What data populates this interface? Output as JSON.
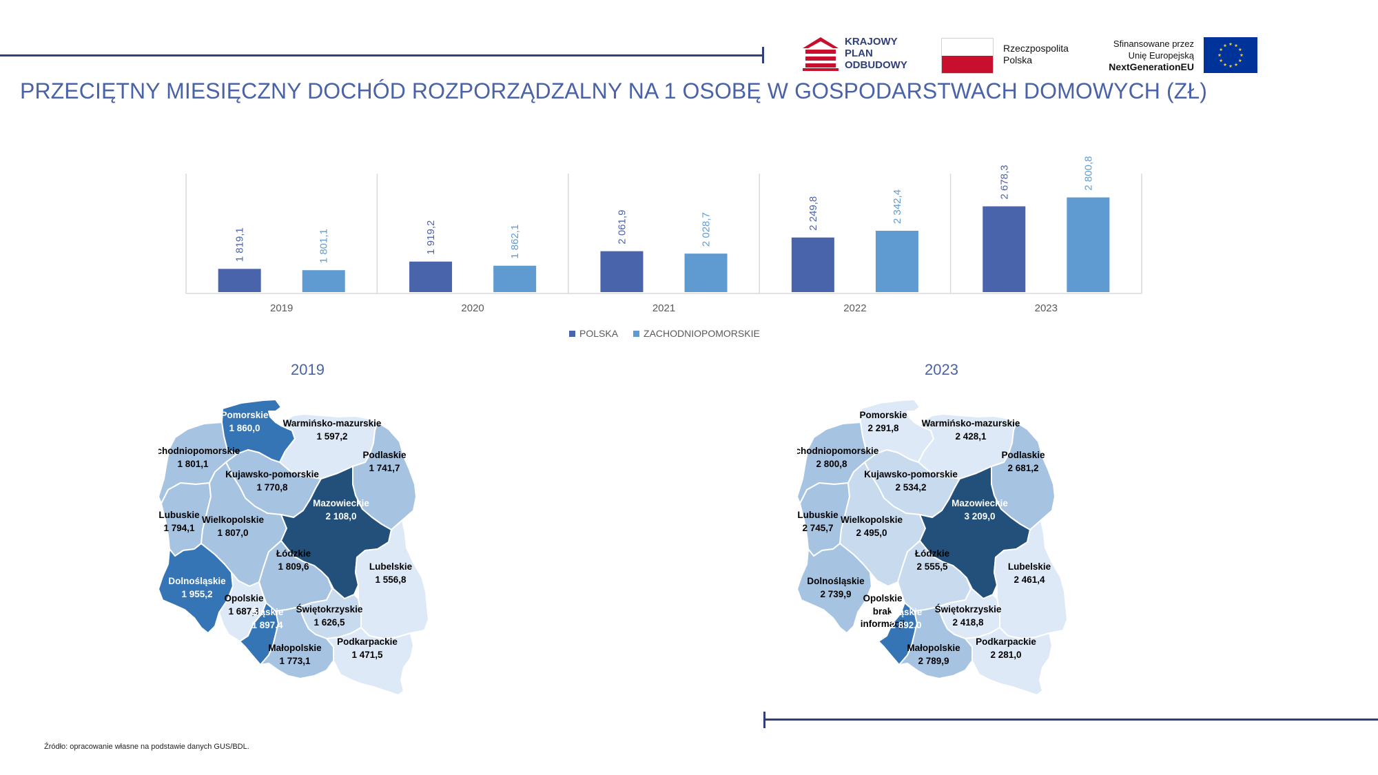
{
  "header": {
    "kpo_logo_text": "KRAJOWY\nPLAN\nODBUDOWY",
    "rp_logo_text": "Rzeczpospolita\nPolska",
    "eu_line1": "Sfinansowane przez",
    "eu_line2": "Unię Europejską",
    "eu_line3": "NextGenerationEU"
  },
  "title": "PRZECIĘTNY MIESIĘCZNY DOCHÓD ROZPORZĄDZALNY NA 1 OSOBĘ W GOSPODARSTWACH DOMOWYCH (ZŁ)",
  "colors": {
    "polska": "#4a64ac",
    "zachodniopomorskie": "#5f9bd1",
    "grid": "#d9d9d9",
    "map_darkest": "#23507a",
    "map_dark": "#3575b5",
    "map_mid": "#a6c4e2",
    "map_light": "#c7daee",
    "map_lightest": "#dde9f6",
    "map_none": "#ffffff"
  },
  "chart_data": {
    "type": "bar",
    "categories": [
      "2019",
      "2020",
      "2021",
      "2022",
      "2023"
    ],
    "series": [
      {
        "name": "POLSKA",
        "values": [
          1819.1,
          1919.2,
          2061.9,
          2249.8,
          2678.3
        ],
        "labels": [
          "1 819,1",
          "1 919,2",
          "2 061,9",
          "2 249,8",
          "2 678,3"
        ]
      },
      {
        "name": "ZACHODNIOPOMORSKIE",
        "values": [
          1801.1,
          1862.1,
          2028.7,
          2342.4,
          2800.8
        ],
        "labels": [
          "1 801,1",
          "1 862,1",
          "2 028,7",
          "2 342,4",
          "2 800,8"
        ]
      }
    ],
    "ylim": [
      1500,
      2900
    ],
    "grid": "vertical separators",
    "legend_position": "bottom"
  },
  "maps": [
    {
      "title": "2019",
      "regions": [
        {
          "id": "zachodniopomorskie",
          "name": "Zachodniopomorskie",
          "value": "1 801,1",
          "shade": "mid"
        },
        {
          "id": "pomorskie",
          "name": "Pomorskie",
          "value": "1 860,0",
          "shade": "dark"
        },
        {
          "id": "warminsko-mazurskie",
          "name": "Warmińsko-mazurskie",
          "value": "1 597,2",
          "shade": "lightest"
        },
        {
          "id": "podlaskie",
          "name": "Podlaskie",
          "value": "1 741,7",
          "shade": "mid"
        },
        {
          "id": "kujawsko-pomorskie",
          "name": "Kujawsko-pomorskie",
          "value": "1 770,8",
          "shade": "mid"
        },
        {
          "id": "lubuskie",
          "name": "Lubuskie",
          "value": "1 794,1",
          "shade": "mid"
        },
        {
          "id": "wielkopolskie",
          "name": "Wielkopolskie",
          "value": "1 807,0",
          "shade": "mid"
        },
        {
          "id": "mazowieckie",
          "name": "Mazowieckie",
          "value": "2 108,0",
          "shade": "darkest"
        },
        {
          "id": "lodzkie",
          "name": "Łódzkie",
          "value": "1 809,6",
          "shade": "mid"
        },
        {
          "id": "lubelskie",
          "name": "Lubelskie",
          "value": "1 556,8",
          "shade": "lightest"
        },
        {
          "id": "dolnoslaskie",
          "name": "Dolnośląskie",
          "value": "1 955,2",
          "shade": "dark"
        },
        {
          "id": "opolskie",
          "name": "Opolskie",
          "value": "1 687,3",
          "shade": "lightest"
        },
        {
          "id": "slaskie",
          "name": "Śląskie",
          "value": "1 897,4",
          "shade": "dark"
        },
        {
          "id": "swietokrzyskie",
          "name": "Świętokrzyskie",
          "value": "1 626,5",
          "shade": "light"
        },
        {
          "id": "malopolskie",
          "name": "Małopolskie",
          "value": "1 773,1",
          "shade": "mid"
        },
        {
          "id": "podkarpackie",
          "name": "Podkarpackie",
          "value": "1 471,5",
          "shade": "lightest"
        }
      ]
    },
    {
      "title": "2023",
      "regions": [
        {
          "id": "zachodniopomorskie",
          "name": "Zachodniopomorskie",
          "value": "2 800,8",
          "shade": "mid"
        },
        {
          "id": "pomorskie",
          "name": "Pomorskie",
          "value": "2 291,8",
          "shade": "lightest"
        },
        {
          "id": "warminsko-mazurskie",
          "name": "Warmińsko-mazurskie",
          "value": "2 428,1",
          "shade": "lightest"
        },
        {
          "id": "podlaskie",
          "name": "Podlaskie",
          "value": "2 681,2",
          "shade": "mid"
        },
        {
          "id": "kujawsko-pomorskie",
          "name": "Kujawsko-pomorskie",
          "value": "2 534,2",
          "shade": "light"
        },
        {
          "id": "lubuskie",
          "name": "Lubuskie",
          "value": "2 745,7",
          "shade": "mid"
        },
        {
          "id": "wielkopolskie",
          "name": "Wielkopolskie",
          "value": "2 495,0",
          "shade": "light"
        },
        {
          "id": "mazowieckie",
          "name": "Mazowieckie",
          "value": "3 209,0",
          "shade": "darkest"
        },
        {
          "id": "lodzkie",
          "name": "Łódzkie",
          "value": "2 555,5",
          "shade": "light"
        },
        {
          "id": "lubelskie",
          "name": "Lubelskie",
          "value": "2 461,4",
          "shade": "lightest"
        },
        {
          "id": "dolnoslaskie",
          "name": "Dolnośląskie",
          "value": "2 739,9",
          "shade": "mid"
        },
        {
          "id": "opolskie",
          "name": "Opolskie",
          "value": "brak\ninformacji",
          "shade": "none"
        },
        {
          "id": "slaskie",
          "name": "Śląskie",
          "value": "2 892,0",
          "shade": "dark"
        },
        {
          "id": "swietokrzyskie",
          "name": "Świętokrzyskie",
          "value": "2 418,8",
          "shade": "lightest"
        },
        {
          "id": "malopolskie",
          "name": "Małopolskie",
          "value": "2 789,9",
          "shade": "mid"
        },
        {
          "id": "podkarpackie",
          "name": "Podkarpackie",
          "value": "2 281,0",
          "shade": "lightest"
        }
      ]
    }
  ],
  "source": "Źródło: opracowanie własne na podstawie danych GUS/BDL."
}
